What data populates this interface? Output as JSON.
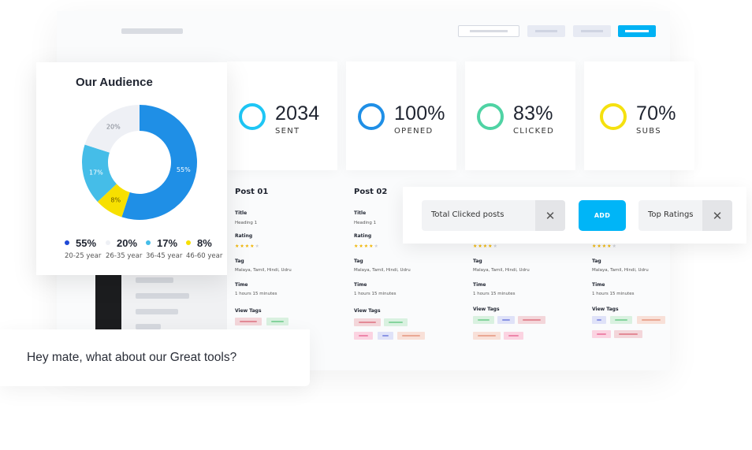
{
  "toolbar": {
    "buttons": [
      "outline-button",
      "grey-button-1",
      "grey-button-2",
      "primary-button"
    ]
  },
  "stats": [
    {
      "value": "2034",
      "label": "SENT",
      "color": "#1ec6f5"
    },
    {
      "value": "100%",
      "label": "OPENED",
      "color": "#1f8fe6"
    },
    {
      "value": "83%",
      "label": "CLICKED",
      "color": "#4fd3a4"
    },
    {
      "value": "70%",
      "label": "SUBS",
      "color": "#f5e10f"
    }
  ],
  "audience": {
    "title": "Our Audience",
    "slices": [
      {
        "pct_label": "55%",
        "value": 55,
        "age": "20-25 year",
        "color": "#1f8fe6"
      },
      {
        "pct_label": "20%",
        "value": 20,
        "age": "26-35 year",
        "color": "#eef0f5"
      },
      {
        "pct_label": "17%",
        "value": 17,
        "age": "36-45 year",
        "color": "#45bde8"
      },
      {
        "pct_label": "8%",
        "value": 8,
        "age": "46-60 year",
        "color": "#f7e000"
      }
    ]
  },
  "posts": [
    {
      "title": "Post 01",
      "heading": "Heading 1",
      "tag": "Malaya, Tamil, Hindi, Udru",
      "time": "1 hours 15 minutes"
    },
    {
      "title": "Post 02",
      "heading": "Heading 1",
      "tag": "Malaya, Tamil, Hindi, Udru",
      "time": "1 hours 15 minutes"
    },
    {
      "title": "",
      "heading": "",
      "tag": "Malaya, Tamil, Hindi, Udru",
      "time": "1 hours 15 minutes"
    },
    {
      "title": "",
      "heading": "",
      "tag": "Malaya, Tamil, Hindi, Udru",
      "time": "1 hours 15 minutes"
    }
  ],
  "post_labels": {
    "title": "Title",
    "rating": "Rating",
    "tag": "Tag",
    "time": "Time",
    "view_tags": "View Tags",
    "stars_on": "★★★★",
    "stars_off": "★"
  },
  "filters": {
    "chip1": "Total Clicked posts",
    "add": "ADD",
    "chip2": "Top Ratings",
    "close_glyph": "✕"
  },
  "chat": {
    "message": "Hey mate, what about our Great tools?"
  }
}
